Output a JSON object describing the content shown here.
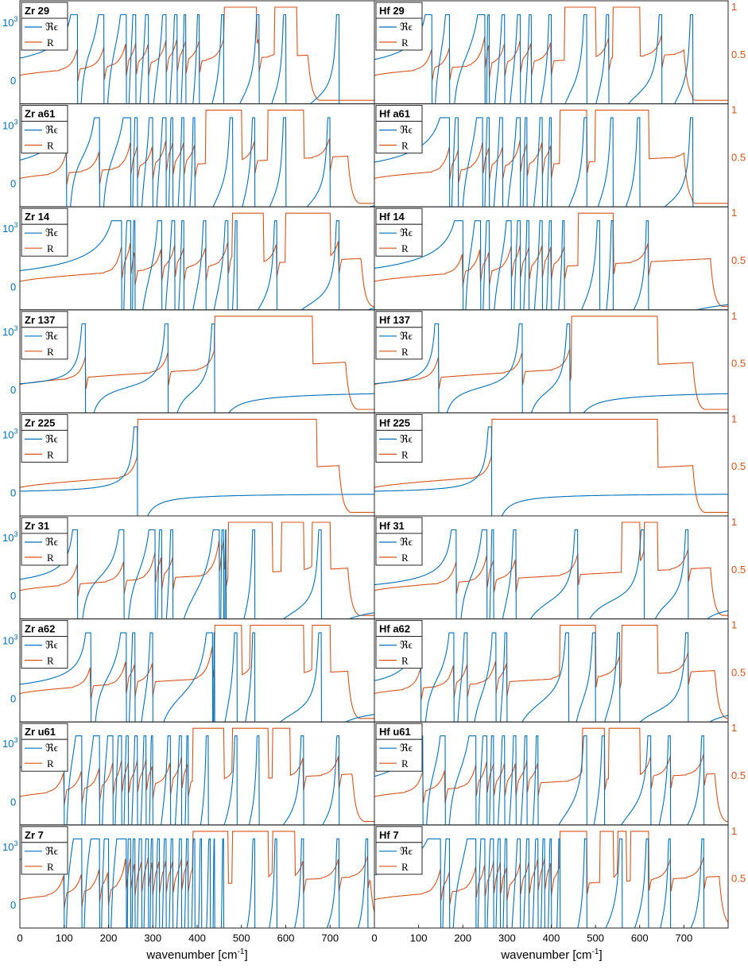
{
  "figure": {
    "colors": {
      "eps": "#0072BD",
      "R": "#D95319",
      "axis": "#262626"
    },
    "left_ytick_labels": [
      "10",
      "3",
      "0"
    ],
    "right_ytick_labels": [
      "1",
      "0.5"
    ],
    "xtick_labels": [
      "0",
      "100",
      "200",
      "300",
      "400",
      "500",
      "600",
      "700"
    ],
    "right_xtick_labels": [
      "0",
      "100",
      "200",
      "300",
      "400",
      "500",
      "600",
      "700"
    ],
    "xlabel_main": "wavenumber [cm",
    "xlabel_exp": "-1",
    "xlabel_close": "]",
    "legend": {
      "eps_label": "ℜϵ",
      "R_label": "R"
    }
  },
  "chart_data": {
    "type": "line",
    "layout": "9 rows x 2 columns of panels, each with left axis Re(epsilon) and right axis R",
    "xlabel": "wavenumber [cm^-1]",
    "xlim": [
      0,
      800
    ],
    "right_ylim": [
      0,
      1
    ],
    "rows": [
      "29",
      "a61",
      "14",
      "137",
      "225",
      "31",
      "a62",
      "u61",
      "7"
    ],
    "panels": [
      {
        "title": "Zr 29",
        "eps_poles": [
          130,
          190,
          240,
          262,
          290,
          330,
          355,
          375,
          405,
          460,
          540,
          600,
          720
        ],
        "R_bands": [
          [
            460,
            535
          ],
          [
            575,
            625
          ]
        ],
        "R_edge": 650
      },
      {
        "title": "Hf 29",
        "eps_poles": [
          130,
          170,
          250,
          260,
          295,
          330,
          355,
          400,
          480,
          530,
          650,
          720
        ],
        "R_bands": [
          [
            430,
            500
          ],
          [
            540,
            600
          ]
        ],
        "R_edge": 700
      },
      {
        "title": "Zr a61",
        "eps_poles": [
          105,
          180,
          250,
          265,
          300,
          330,
          345,
          370,
          395,
          480,
          530,
          600,
          700
        ],
        "R_bands": [
          [
            420,
            500
          ],
          [
            560,
            640
          ]
        ],
        "R_edge": 740
      },
      {
        "title": "Hf a61",
        "eps_poles": [
          170,
          190,
          245,
          260,
          290,
          330,
          345,
          380,
          400,
          480,
          540,
          600,
          720
        ],
        "R_bands": [
          [
            420,
            480
          ],
          [
            500,
            620
          ]
        ],
        "R_edge": 700
      },
      {
        "title": "Zr 14",
        "eps_poles": [
          230,
          250,
          260,
          320,
          350,
          370,
          420,
          470,
          490,
          580,
          720
        ],
        "R_bands": [
          [
            480,
            550
          ],
          [
            600,
            700
          ]
        ],
        "R_edge": 770
      },
      {
        "title": "Hf 14",
        "eps_poles": [
          200,
          240,
          260,
          310,
          330,
          350,
          380,
          400,
          430,
          510,
          540,
          620
        ],
        "R_bands": [
          [
            460,
            540
          ]
        ],
        "R_edge": 760
      },
      {
        "title": "Zr 137",
        "eps_poles": [
          148,
          335,
          440
        ],
        "R_bands": [
          [
            440,
            660
          ]
        ],
        "R_edge": 735
      },
      {
        "title": "Hf 137",
        "eps_poles": [
          145,
          335,
          442
        ],
        "R_bands": [
          [
            445,
            640
          ]
        ],
        "R_edge": 720
      },
      {
        "title": "Zr 225",
        "eps_poles": [
          265
        ],
        "R_bands": [
          [
            265,
            670
          ]
        ],
        "R_edge": 720
      },
      {
        "title": "Hf 225",
        "eps_poles": [
          265
        ],
        "R_bands": [
          [
            265,
            640
          ]
        ],
        "R_edge": 720
      },
      {
        "title": "Zr 31",
        "eps_poles": [
          130,
          235,
          305,
          320,
          345,
          450,
          460,
          465,
          530,
          680
        ],
        "R_bands": [
          [
            470,
            570
          ],
          [
            590,
            640
          ],
          [
            660,
            700
          ]
        ],
        "R_edge": 740
      },
      {
        "title": "Hf 31",
        "eps_poles": [
          185,
          255,
          270,
          320,
          460,
          610,
          710
        ],
        "R_bands": [
          [
            560,
            600
          ],
          [
            610,
            640
          ]
        ],
        "R_edge": 760
      },
      {
        "title": "Zr a62",
        "eps_poles": [
          160,
          240,
          260,
          300,
          435,
          440,
          490,
          530,
          680
        ],
        "R_bands": [
          [
            440,
            500
          ],
          [
            520,
            640
          ],
          [
            660,
            700
          ]
        ],
        "R_edge": 740
      },
      {
        "title": "Hf a62",
        "eps_poles": [
          105,
          180,
          210,
          275,
          300,
          440,
          500,
          555,
          710
        ],
        "R_bands": [
          [
            420,
            500
          ],
          [
            560,
            640
          ]
        ],
        "R_edge": 770
      },
      {
        "title": "Zr u61",
        "eps_poles": [
          100,
          140,
          180,
          210,
          230,
          245,
          265,
          285,
          300,
          340,
          365,
          380,
          425,
          490,
          540,
          640,
          720
        ],
        "R_bands": [
          [
            390,
            460
          ],
          [
            480,
            560
          ],
          [
            570,
            610
          ]
        ],
        "R_edge": 750
      },
      {
        "title": "Hf u61",
        "eps_poles": [
          110,
          160,
          230,
          255,
          270,
          295,
          320,
          345,
          370,
          480,
          520,
          625,
          670,
          745
        ],
        "R_bands": [
          [
            470,
            520
          ],
          [
            530,
            600
          ]
        ],
        "R_edge": 770
      },
      {
        "title": "Zr 7",
        "eps_poles": [
          100,
          140,
          180,
          200,
          240,
          250,
          260,
          275,
          290,
          300,
          315,
          330,
          345,
          365,
          380,
          395,
          410,
          430,
          440,
          460,
          530,
          580,
          640,
          720,
          785
        ],
        "R_bands": [
          [
            390,
            470
          ],
          [
            480,
            560
          ],
          [
            570,
            620
          ]
        ],
        "R_edge": 790
      },
      {
        "title": "Hf 7",
        "eps_poles": [
          150,
          170,
          230,
          250,
          270,
          285,
          300,
          330,
          350,
          370,
          385,
          400,
          420,
          480,
          560,
          620,
          670,
          745
        ],
        "R_bands": [
          [
            420,
            480
          ],
          [
            510,
            540
          ],
          [
            550,
            570
          ],
          [
            580,
            620
          ]
        ],
        "R_edge": 780
      }
    ]
  }
}
